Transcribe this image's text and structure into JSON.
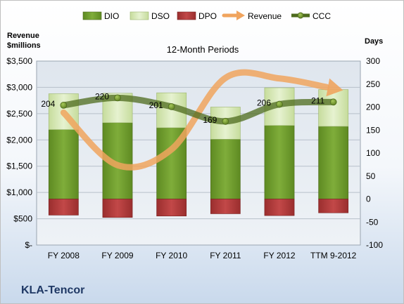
{
  "chart_data": {
    "type": "bar",
    "title": "12-Month Periods",
    "company": "KLA-Tencor",
    "left_axis_title_line1": "Revenue",
    "left_axis_title_line2": "$millions",
    "right_axis_title": "Days",
    "categories": [
      "FY 2008",
      "FY 2009",
      "FY 2010",
      "FY 2011",
      "FY 2012",
      "TTM 9-2012"
    ],
    "left_ticks": [
      "$-",
      "$500",
      "$1,000",
      "$1,500",
      "$2,000",
      "$2,500",
      "$3,000",
      "$3,500"
    ],
    "right_ticks": [
      "-100",
      "-50",
      "0",
      "50",
      "100",
      "150",
      "200",
      "250",
      "300"
    ],
    "left_ylim": [
      0,
      3500
    ],
    "right_ylim": [
      -100,
      300
    ],
    "legend": [
      "DIO",
      "DSO",
      "DPO",
      "Revenue",
      "CCC"
    ],
    "series": [
      {
        "name": "DIO",
        "axis": "right",
        "values": [
          151,
          166,
          155,
          130,
          160,
          158
        ]
      },
      {
        "name": "DSO",
        "axis": "right",
        "values": [
          78,
          64,
          76,
          70,
          82,
          80
        ]
      },
      {
        "name": "DPO",
        "axis": "right",
        "values": [
          -35,
          -40,
          -37,
          -32,
          -36,
          -30
        ]
      },
      {
        "name": "Revenue",
        "axis": "left",
        "values": [
          2520,
          1520,
          1820,
          3180,
          3170,
          2980
        ]
      },
      {
        "name": "CCC",
        "axis": "right",
        "values": [
          204,
          220,
          201,
          169,
          206,
          211
        ]
      }
    ],
    "data_labels": [
      "204",
      "220",
      "201",
      "169",
      "206",
      "211"
    ],
    "colors": {
      "DIO": "#6f9a2e",
      "DSO": "#d6e8b4",
      "DPO": "#b03a3a",
      "Revenue": "#f0a45e",
      "CCC": "#4e6b1e"
    },
    "grid": true,
    "legend_position": "top"
  }
}
